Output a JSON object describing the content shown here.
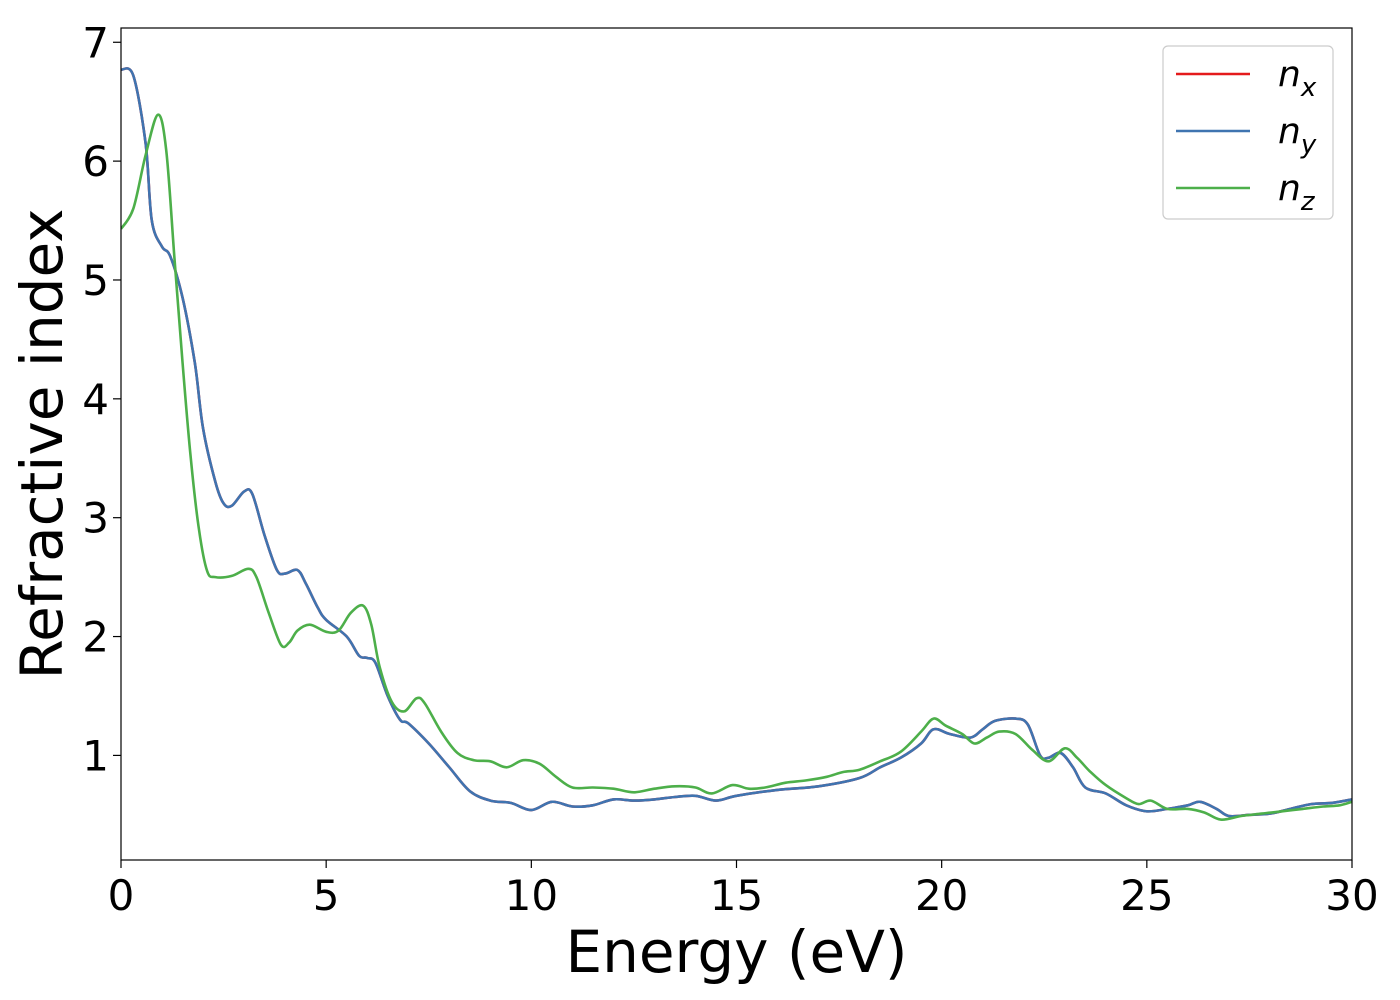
{
  "chart_data": {
    "type": "line",
    "xlabel": "Energy (eV)",
    "ylabel": "Refractive index",
    "xlim": [
      0,
      30
    ],
    "ylim": [
      0.12,
      7.12
    ],
    "xticks": [
      "0",
      "5",
      "10",
      "15",
      "20",
      "25",
      "30"
    ],
    "yticks": [
      "1",
      "2",
      "3",
      "4",
      "5",
      "6",
      "7"
    ],
    "grid": false,
    "legend_position": "top-right",
    "series": [
      {
        "name": "n",
        "subscript": "x",
        "color": "#e41a1c",
        "points": [
          [
            0,
            6.77
          ],
          [
            0.3,
            6.72
          ],
          [
            0.6,
            6.15
          ],
          [
            0.75,
            5.5
          ],
          [
            1.0,
            5.28
          ],
          [
            1.2,
            5.2
          ],
          [
            1.5,
            4.85
          ],
          [
            1.8,
            4.3
          ],
          [
            2.0,
            3.75
          ],
          [
            2.3,
            3.3
          ],
          [
            2.5,
            3.12
          ],
          [
            2.7,
            3.1
          ],
          [
            3.0,
            3.22
          ],
          [
            3.2,
            3.2
          ],
          [
            3.5,
            2.85
          ],
          [
            3.8,
            2.56
          ],
          [
            4.0,
            2.53
          ],
          [
            4.3,
            2.56
          ],
          [
            4.5,
            2.45
          ],
          [
            4.8,
            2.24
          ],
          [
            5.0,
            2.14
          ],
          [
            5.5,
            2.0
          ],
          [
            5.8,
            1.84
          ],
          [
            6.0,
            1.82
          ],
          [
            6.2,
            1.78
          ],
          [
            6.5,
            1.5
          ],
          [
            6.8,
            1.3
          ],
          [
            7.0,
            1.27
          ],
          [
            7.5,
            1.1
          ],
          [
            8.0,
            0.9
          ],
          [
            8.5,
            0.7
          ],
          [
            9.0,
            0.62
          ],
          [
            9.5,
            0.6
          ],
          [
            10.0,
            0.54
          ],
          [
            10.5,
            0.61
          ],
          [
            11.0,
            0.57
          ],
          [
            11.5,
            0.58
          ],
          [
            12.0,
            0.63
          ],
          [
            12.5,
            0.62
          ],
          [
            13.0,
            0.63
          ],
          [
            13.5,
            0.65
          ],
          [
            14.0,
            0.66
          ],
          [
            14.5,
            0.62
          ],
          [
            15.0,
            0.66
          ],
          [
            16.0,
            0.71
          ],
          [
            17.0,
            0.74
          ],
          [
            18.0,
            0.81
          ],
          [
            18.5,
            0.9
          ],
          [
            19.0,
            0.98
          ],
          [
            19.5,
            1.1
          ],
          [
            19.8,
            1.22
          ],
          [
            20.2,
            1.18
          ],
          [
            20.7,
            1.15
          ],
          [
            21.0,
            1.22
          ],
          [
            21.3,
            1.29
          ],
          [
            21.8,
            1.31
          ],
          [
            22.1,
            1.26
          ],
          [
            22.4,
            1.0
          ],
          [
            22.6,
            0.98
          ],
          [
            22.9,
            1.02
          ],
          [
            23.2,
            0.9
          ],
          [
            23.5,
            0.73
          ],
          [
            24.0,
            0.68
          ],
          [
            24.5,
            0.58
          ],
          [
            25.0,
            0.53
          ],
          [
            25.5,
            0.55
          ],
          [
            26.0,
            0.58
          ],
          [
            26.3,
            0.61
          ],
          [
            26.7,
            0.55
          ],
          [
            27.0,
            0.49
          ],
          [
            27.5,
            0.5
          ],
          [
            28.0,
            0.51
          ],
          [
            28.5,
            0.55
          ],
          [
            29.0,
            0.59
          ],
          [
            29.5,
            0.6
          ],
          [
            30.0,
            0.63
          ]
        ]
      },
      {
        "name": "n",
        "subscript": "y",
        "color": "#3f74b0",
        "points": [
          [
            0,
            6.77
          ],
          [
            0.3,
            6.72
          ],
          [
            0.6,
            6.15
          ],
          [
            0.75,
            5.5
          ],
          [
            1.0,
            5.28
          ],
          [
            1.2,
            5.2
          ],
          [
            1.5,
            4.85
          ],
          [
            1.8,
            4.3
          ],
          [
            2.0,
            3.75
          ],
          [
            2.3,
            3.3
          ],
          [
            2.5,
            3.12
          ],
          [
            2.7,
            3.1
          ],
          [
            3.0,
            3.22
          ],
          [
            3.2,
            3.2
          ],
          [
            3.5,
            2.85
          ],
          [
            3.8,
            2.56
          ],
          [
            4.0,
            2.53
          ],
          [
            4.3,
            2.56
          ],
          [
            4.5,
            2.45
          ],
          [
            4.8,
            2.24
          ],
          [
            5.0,
            2.14
          ],
          [
            5.5,
            2.0
          ],
          [
            5.8,
            1.84
          ],
          [
            6.0,
            1.82
          ],
          [
            6.2,
            1.78
          ],
          [
            6.5,
            1.5
          ],
          [
            6.8,
            1.3
          ],
          [
            7.0,
            1.27
          ],
          [
            7.5,
            1.1
          ],
          [
            8.0,
            0.9
          ],
          [
            8.5,
            0.7
          ],
          [
            9.0,
            0.62
          ],
          [
            9.5,
            0.6
          ],
          [
            10.0,
            0.54
          ],
          [
            10.5,
            0.61
          ],
          [
            11.0,
            0.57
          ],
          [
            11.5,
            0.58
          ],
          [
            12.0,
            0.63
          ],
          [
            12.5,
            0.62
          ],
          [
            13.0,
            0.63
          ],
          [
            13.5,
            0.65
          ],
          [
            14.0,
            0.66
          ],
          [
            14.5,
            0.62
          ],
          [
            15.0,
            0.66
          ],
          [
            16.0,
            0.71
          ],
          [
            17.0,
            0.74
          ],
          [
            18.0,
            0.81
          ],
          [
            18.5,
            0.9
          ],
          [
            19.0,
            0.98
          ],
          [
            19.5,
            1.1
          ],
          [
            19.8,
            1.22
          ],
          [
            20.2,
            1.18
          ],
          [
            20.7,
            1.15
          ],
          [
            21.0,
            1.22
          ],
          [
            21.3,
            1.29
          ],
          [
            21.8,
            1.31
          ],
          [
            22.1,
            1.26
          ],
          [
            22.4,
            1.0
          ],
          [
            22.6,
            0.98
          ],
          [
            22.9,
            1.02
          ],
          [
            23.2,
            0.9
          ],
          [
            23.5,
            0.73
          ],
          [
            24.0,
            0.68
          ],
          [
            24.5,
            0.58
          ],
          [
            25.0,
            0.53
          ],
          [
            25.5,
            0.55
          ],
          [
            26.0,
            0.58
          ],
          [
            26.3,
            0.61
          ],
          [
            26.7,
            0.55
          ],
          [
            27.0,
            0.49
          ],
          [
            27.5,
            0.5
          ],
          [
            28.0,
            0.51
          ],
          [
            28.5,
            0.55
          ],
          [
            29.0,
            0.59
          ],
          [
            29.5,
            0.6
          ],
          [
            30.0,
            0.63
          ]
        ]
      },
      {
        "name": "n",
        "subscript": "z",
        "color": "#4daf4a",
        "points": [
          [
            0,
            5.43
          ],
          [
            0.3,
            5.6
          ],
          [
            0.6,
            6.05
          ],
          [
            0.9,
            6.39
          ],
          [
            1.1,
            6.1
          ],
          [
            1.3,
            5.2
          ],
          [
            1.5,
            4.3
          ],
          [
            1.7,
            3.5
          ],
          [
            1.9,
            2.9
          ],
          [
            2.1,
            2.55
          ],
          [
            2.3,
            2.5
          ],
          [
            2.7,
            2.51
          ],
          [
            3.1,
            2.57
          ],
          [
            3.3,
            2.5
          ],
          [
            3.6,
            2.2
          ],
          [
            3.9,
            1.93
          ],
          [
            4.1,
            1.95
          ],
          [
            4.3,
            2.05
          ],
          [
            4.6,
            2.1
          ],
          [
            5.0,
            2.04
          ],
          [
            5.3,
            2.05
          ],
          [
            5.6,
            2.2
          ],
          [
            5.9,
            2.26
          ],
          [
            6.1,
            2.1
          ],
          [
            6.3,
            1.75
          ],
          [
            6.6,
            1.45
          ],
          [
            6.9,
            1.37
          ],
          [
            7.2,
            1.48
          ],
          [
            7.4,
            1.44
          ],
          [
            7.8,
            1.2
          ],
          [
            8.2,
            1.02
          ],
          [
            8.6,
            0.96
          ],
          [
            9.0,
            0.95
          ],
          [
            9.4,
            0.9
          ],
          [
            9.8,
            0.96
          ],
          [
            10.2,
            0.93
          ],
          [
            10.6,
            0.82
          ],
          [
            11.0,
            0.73
          ],
          [
            11.5,
            0.73
          ],
          [
            12.0,
            0.72
          ],
          [
            12.5,
            0.69
          ],
          [
            13.0,
            0.72
          ],
          [
            13.5,
            0.74
          ],
          [
            14.0,
            0.73
          ],
          [
            14.4,
            0.68
          ],
          [
            14.9,
            0.75
          ],
          [
            15.3,
            0.72
          ],
          [
            15.7,
            0.73
          ],
          [
            16.2,
            0.77
          ],
          [
            16.7,
            0.79
          ],
          [
            17.2,
            0.82
          ],
          [
            17.6,
            0.86
          ],
          [
            18.0,
            0.88
          ],
          [
            18.5,
            0.95
          ],
          [
            19.0,
            1.03
          ],
          [
            19.5,
            1.2
          ],
          [
            19.8,
            1.31
          ],
          [
            20.1,
            1.25
          ],
          [
            20.5,
            1.18
          ],
          [
            20.8,
            1.1
          ],
          [
            21.1,
            1.15
          ],
          [
            21.4,
            1.2
          ],
          [
            21.8,
            1.18
          ],
          [
            22.2,
            1.05
          ],
          [
            22.6,
            0.95
          ],
          [
            23.0,
            1.06
          ],
          [
            23.3,
            0.98
          ],
          [
            23.6,
            0.87
          ],
          [
            24.0,
            0.75
          ],
          [
            24.5,
            0.64
          ],
          [
            24.8,
            0.59
          ],
          [
            25.1,
            0.62
          ],
          [
            25.5,
            0.55
          ],
          [
            26.0,
            0.55
          ],
          [
            26.4,
            0.52
          ],
          [
            26.8,
            0.46
          ],
          [
            27.3,
            0.49
          ],
          [
            27.8,
            0.51
          ],
          [
            28.3,
            0.53
          ],
          [
            28.8,
            0.55
          ],
          [
            29.3,
            0.57
          ],
          [
            29.7,
            0.58
          ],
          [
            30.0,
            0.61
          ]
        ]
      }
    ]
  }
}
